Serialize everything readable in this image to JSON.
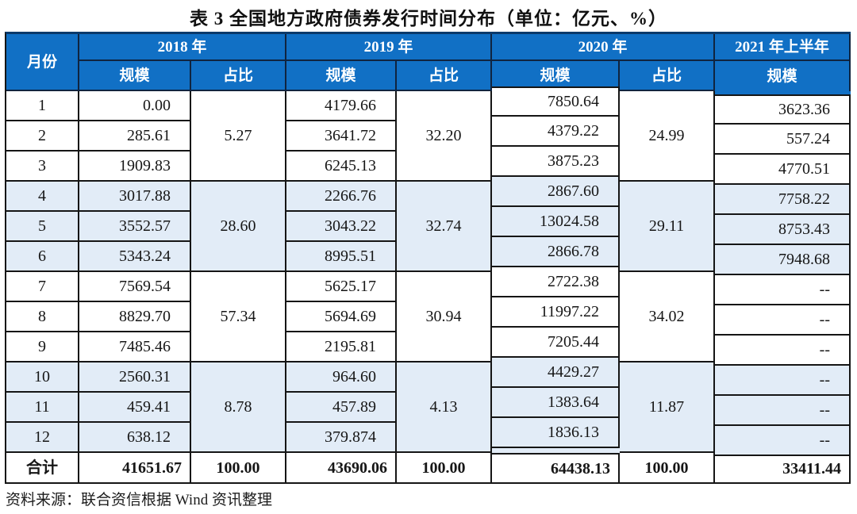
{
  "title": "表 3  全国地方政府债券发行时间分布（单位：亿元、%）",
  "source": "资料来源：联合资信根据 Wind 资讯整理",
  "colors": {
    "header_bg": "#1170c5",
    "stripe": "#e2ecf7",
    "border": "#151515",
    "top_edge": "#0a3a6b",
    "header_text": "#ffffff"
  },
  "table": {
    "month_header": "月份",
    "year_labels": [
      "2018 年",
      "2019 年",
      "2020 年",
      "2021 年上半年"
    ],
    "scale_label": "规模",
    "share_label": "占比",
    "months": [
      "1",
      "2",
      "3",
      "4",
      "5",
      "6",
      "7",
      "8",
      "9",
      "10",
      "11",
      "12"
    ],
    "scale_2018": [
      "0.00",
      "285.61",
      "1909.83",
      "3017.88",
      "3552.57",
      "5343.24",
      "7569.54",
      "8829.70",
      "7485.46",
      "2560.31",
      "459.41",
      "638.12"
    ],
    "share_2018": [
      "5.27",
      "28.60",
      "57.34",
      "8.78"
    ],
    "scale_2019": [
      "4179.66",
      "3641.72",
      "6245.13",
      "2266.76",
      "3043.22",
      "8995.51",
      "5625.17",
      "5694.69",
      "2195.81",
      "964.60",
      "457.89",
      "379.874"
    ],
    "share_2019": [
      "32.20",
      "32.74",
      "30.94",
      "4.13"
    ],
    "scale_2020": [
      "7850.64",
      "4379.22",
      "3875.23",
      "2867.60",
      "13024.58",
      "2866.78",
      "2722.38",
      "11997.22",
      "7205.44",
      "4429.27",
      "1383.64",
      "1836.13"
    ],
    "share_2020": [
      "24.99",
      "29.11",
      "34.02",
      "11.87"
    ],
    "scale_2021": [
      "3623.36",
      "557.24",
      "4770.51",
      "7758.22",
      "8753.43",
      "7948.68",
      "--",
      "--",
      "--",
      "--",
      "--",
      "--"
    ],
    "total_row": {
      "label": "合计",
      "scale_2018": "41651.67",
      "share_2018": "100.00",
      "scale_2019": "43690.06",
      "share_2019": "100.00",
      "scale_2020": "64438.13",
      "share_2020": "100.00",
      "scale_2021": "33411.44"
    }
  }
}
